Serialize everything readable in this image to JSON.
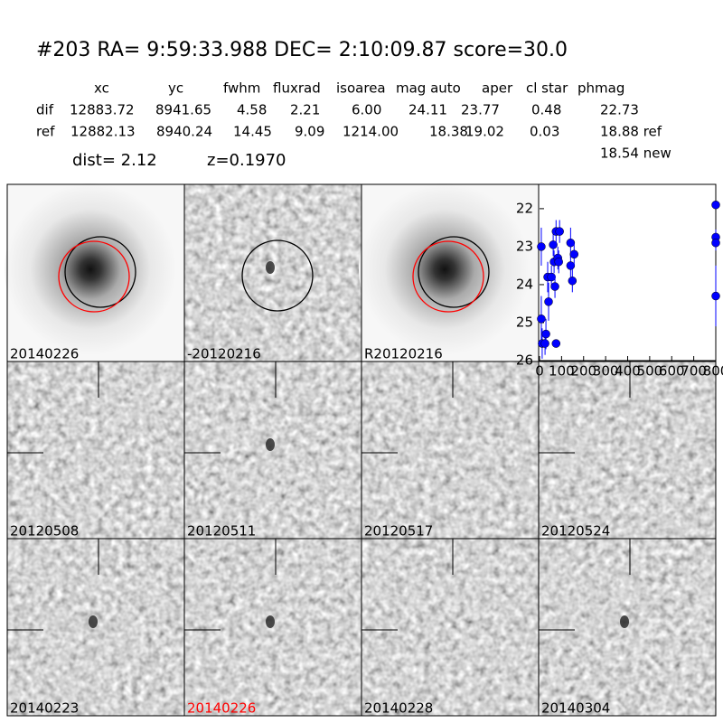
{
  "header": {
    "title": "#203   RA= 9:59:33.988 DEC= 2:10:09.87      score=30.0"
  },
  "table": {
    "columns": [
      "xc",
      "yc",
      "fwhm",
      "fluxrad",
      "isoarea",
      "mag auto",
      "aper",
      "cl star",
      "phmag"
    ],
    "rows": [
      [
        "dif",
        "12883.72",
        "8941.65",
        "4.58",
        "2.21",
        "6.00",
        "24.11",
        "23.77",
        "0.48",
        "22.73"
      ],
      [
        "ref",
        "12882.13",
        "8940.24",
        "14.45",
        "9.09",
        "1214.00",
        "18.38",
        "19.02",
        "0.03",
        "18.88 ref"
      ]
    ],
    "extra": "18.54 new"
  },
  "info": {
    "dist": "dist=  2.12",
    "z": "z=0.1970"
  },
  "panels": [
    {
      "label": "20140226"
    },
    {
      "label": "-20120216"
    },
    {
      "label": "R20120216"
    },
    {
      "label": "20120508"
    },
    {
      "label": "20120511"
    },
    {
      "label": "20120517"
    },
    {
      "label": "20120524"
    },
    {
      "label": "20140223"
    },
    {
      "label": "20140226",
      "color": "#ff0000"
    },
    {
      "label": "20140228"
    },
    {
      "label": "20140304"
    }
  ],
  "chart_data": {
    "type": "scatter",
    "x": [
      8,
      8,
      12,
      25,
      29,
      37,
      41,
      54,
      62,
      66,
      70,
      75,
      75,
      83,
      87,
      91,
      141,
      141,
      149,
      157,
      800,
      800,
      800,
      800
    ],
    "values": [
      23.0,
      24.9,
      25.55,
      25.55,
      25.3,
      23.8,
      24.45,
      23.8,
      22.95,
      23.4,
      24.05,
      25.55,
      22.6,
      23.3,
      23.4,
      22.6,
      22.9,
      23.5,
      23.9,
      23.2,
      21.9,
      22.75,
      22.9,
      24.3
    ],
    "errors": [
      0.5,
      0.6,
      0.4,
      0.3,
      0.4,
      0.4,
      0.5,
      0.3,
      0.3,
      0.3,
      0.3,
      0.1,
      0.3,
      0.3,
      0.3,
      0.3,
      0.4,
      0.3,
      0.3,
      0.3,
      0.1,
      0.2,
      0.2,
      0.8
    ],
    "color": "#0000ff",
    "xlim": [
      0,
      800
    ],
    "ylim": [
      26,
      21.36
    ],
    "xticks": [
      0,
      100,
      200,
      300,
      400,
      500,
      600,
      700,
      800
    ],
    "yticks": [
      22,
      23,
      24,
      25,
      26
    ]
  }
}
